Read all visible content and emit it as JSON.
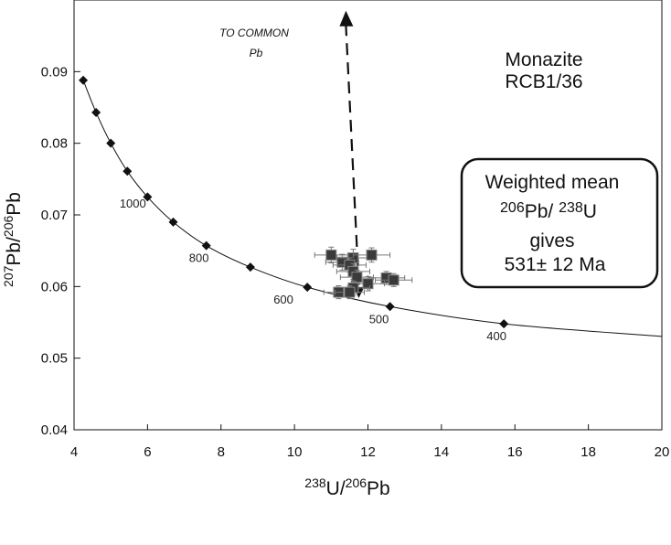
{
  "chart_data": {
    "type": "scatter",
    "title": "Monazite",
    "subtitle": "RCB1/36",
    "xlabel_parts": {
      "sup1": "238",
      "t1": "U/",
      "sup2": "206",
      "t2": "Pb"
    },
    "ylabel_parts": {
      "sup1": "207",
      "t1": "Pb/",
      "sup2": "206",
      "t2": "Pb"
    },
    "xlim": [
      4,
      20
    ],
    "ylim": [
      0.04,
      0.1
    ],
    "xticks": [
      4,
      6,
      8,
      10,
      12,
      14,
      16,
      18,
      20
    ],
    "xtick_labels": [
      "4",
      "6",
      "8",
      "10",
      "12",
      "14",
      "16",
      "18",
      "20"
    ],
    "yticks": [
      0.04,
      0.05,
      0.06,
      0.07,
      0.08,
      0.09
    ],
    "ytick_labels": [
      "0.04",
      "0.05",
      "0.06",
      "0.07",
      "0.08",
      "0.09"
    ],
    "concordia_markers": [
      {
        "x": 4.25,
        "y": 0.0888
      },
      {
        "x": 4.6,
        "y": 0.0843
      },
      {
        "x": 5.0,
        "y": 0.08
      },
      {
        "x": 5.45,
        "y": 0.0761
      },
      {
        "x": 6.0,
        "y": 0.0725
      },
      {
        "x": 6.7,
        "y": 0.069
      },
      {
        "x": 7.6,
        "y": 0.0657
      },
      {
        "x": 8.8,
        "y": 0.0627
      },
      {
        "x": 10.35,
        "y": 0.0599
      },
      {
        "x": 12.6,
        "y": 0.0572
      },
      {
        "x": 15.7,
        "y": 0.0548
      }
    ],
    "age_labels": [
      {
        "text": "1000",
        "x": 5.6,
        "y": 0.071
      },
      {
        "text": "800",
        "x": 7.4,
        "y": 0.0634
      },
      {
        "text": "600",
        "x": 9.7,
        "y": 0.0576
      },
      {
        "text": "500",
        "x": 12.3,
        "y": 0.0549
      },
      {
        "text": "400",
        "x": 15.5,
        "y": 0.0525
      }
    ],
    "data_points": [
      {
        "x": 11.0,
        "y": 0.0644,
        "xerr": 0.45,
        "yerr": 0.0011
      },
      {
        "x": 11.3,
        "y": 0.0634,
        "xerr": 0.45,
        "yerr": 0.0011
      },
      {
        "x": 11.6,
        "y": 0.064,
        "xerr": 0.45,
        "yerr": 0.0012
      },
      {
        "x": 12.1,
        "y": 0.0644,
        "xerr": 0.5,
        "yerr": 0.001
      },
      {
        "x": 11.5,
        "y": 0.063,
        "xerr": 0.45,
        "yerr": 0.001
      },
      {
        "x": 11.6,
        "y": 0.0621,
        "xerr": 0.45,
        "yerr": 0.0011
      },
      {
        "x": 11.7,
        "y": 0.0613,
        "xerr": 0.45,
        "yerr": 0.001
      },
      {
        "x": 12.5,
        "y": 0.0612,
        "xerr": 0.5,
        "yerr": 0.0009
      },
      {
        "x": 12.7,
        "y": 0.0609,
        "xerr": 0.5,
        "yerr": 0.0009
      },
      {
        "x": 12.0,
        "y": 0.0604,
        "xerr": 0.45,
        "yerr": 0.001
      },
      {
        "x": 11.6,
        "y": 0.0598,
        "xerr": 0.45,
        "yerr": 0.001
      },
      {
        "x": 11.2,
        "y": 0.0592,
        "xerr": 0.4,
        "yerr": 0.0009
      },
      {
        "x": 11.5,
        "y": 0.0592,
        "xerr": 0.4,
        "yerr": 0.0009
      }
    ],
    "common_pb_arrow": {
      "from": {
        "x": 11.75,
        "y": 0.0584
      },
      "to": {
        "x": 11.4,
        "y": 0.0985
      }
    },
    "arrow_label": [
      "TO COMMON",
      "Pb"
    ],
    "result_box": {
      "line1": "Weighted mean",
      "line2_parts": {
        "sup1": "206",
        "t1": "Pb/ ",
        "sup2": "238",
        "t2": "U"
      },
      "line3": "gives",
      "line4": "531± 12 Ma"
    },
    "grid": false
  }
}
